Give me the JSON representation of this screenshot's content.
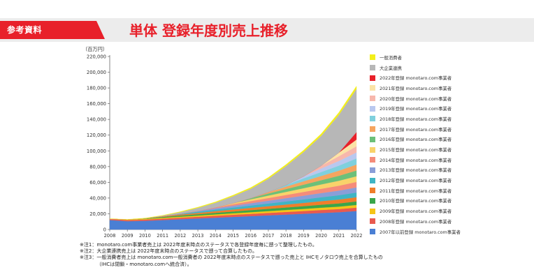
{
  "header": {
    "badge": "参考資料",
    "title": "単体 登録年度別売上推移"
  },
  "chart_data": {
    "type": "area",
    "stacked": true,
    "title": "単体 登録年度別売上推移",
    "ylabel": "（百万円）",
    "xlabel": "",
    "ylim": [
      0,
      220000
    ],
    "yticks": [
      0,
      20000,
      40000,
      60000,
      80000,
      100000,
      120000,
      140000,
      160000,
      180000,
      200000,
      220000
    ],
    "ytick_labels": [
      "0",
      "20,000",
      "40,000",
      "60,000",
      "80,000",
      "100,000",
      "120,000",
      "140,000",
      "160,000",
      "180,000",
      "200,000",
      "220,000"
    ],
    "x": [
      "2008",
      "2009",
      "2010",
      "2011",
      "2012",
      "2013",
      "2014",
      "2015",
      "2016",
      "2017",
      "2018",
      "2019",
      "2020",
      "2021",
      "2022"
    ],
    "series": [
      {
        "name": "2007年以前登録 monotaro.com事業者",
        "color": "#4a7fd4",
        "values": [
          12000,
          10500,
          11000,
          12000,
          13000,
          14000,
          15000,
          16000,
          17000,
          18000,
          19000,
          20000,
          21000,
          22000,
          23500
        ]
      },
      {
        "name": "2008年登録 monotaro.com事業者",
        "color": "#e85a4f",
        "values": [
          1500,
          1500,
          1600,
          1800,
          2000,
          2200,
          2500,
          2700,
          2900,
          3100,
          3300,
          3500,
          3800,
          4000,
          4300
        ]
      },
      {
        "name": "2009年登録 monotaro.com事業者",
        "color": "#f5c518",
        "values": [
          0,
          600,
          900,
          1100,
          1300,
          1500,
          1700,
          1900,
          2100,
          2300,
          2500,
          2700,
          2900,
          3100,
          3400
        ]
      },
      {
        "name": "2010年登録 monotaro.com事業者",
        "color": "#3aa64a",
        "values": [
          0,
          0,
          600,
          1100,
          1400,
          1700,
          2000,
          2300,
          2600,
          2900,
          3200,
          3500,
          3800,
          4100,
          4500
        ]
      },
      {
        "name": "2011年登録 monotaro.com事業者",
        "color": "#f07e2a",
        "values": [
          0,
          0,
          0,
          700,
          1300,
          1700,
          2100,
          2500,
          2900,
          3300,
          3700,
          4100,
          4500,
          4900,
          5300
        ]
      },
      {
        "name": "2012年登録 monotaro.com事業者",
        "color": "#3fb5c4",
        "values": [
          0,
          0,
          0,
          0,
          800,
          1500,
          2000,
          2500,
          3000,
          3500,
          4000,
          4500,
          5000,
          5500,
          6000
        ]
      },
      {
        "name": "2013年登録 monotaro.com事業者",
        "color": "#8a9ed8",
        "values": [
          0,
          0,
          0,
          0,
          0,
          900,
          1700,
          2300,
          2900,
          3500,
          4100,
          4700,
          5300,
          5900,
          6500
        ]
      },
      {
        "name": "2014年登録 monotaro.com事業者",
        "color": "#f58c7a",
        "values": [
          0,
          0,
          0,
          0,
          0,
          0,
          1000,
          2000,
          2700,
          3400,
          4100,
          4800,
          5500,
          6200,
          7000
        ]
      },
      {
        "name": "2015年登録 monotaro.com事業者",
        "color": "#f9d36a",
        "values": [
          0,
          0,
          0,
          0,
          0,
          0,
          0,
          1200,
          2300,
          3100,
          3900,
          4700,
          5500,
          6300,
          7200
        ]
      },
      {
        "name": "2016年登録 monotaro.com事業者",
        "color": "#6cc079",
        "values": [
          0,
          0,
          0,
          0,
          0,
          0,
          0,
          0,
          1400,
          2700,
          3600,
          4500,
          5400,
          6300,
          7300
        ]
      },
      {
        "name": "2017年登録 monotaro.com事業者",
        "color": "#f6a55f",
        "values": [
          0,
          0,
          0,
          0,
          0,
          0,
          0,
          0,
          0,
          1700,
          3200,
          4300,
          5400,
          6500,
          7600
        ]
      },
      {
        "name": "2018年登録 monotaro.com事業者",
        "color": "#7fd0dd",
        "values": [
          0,
          0,
          0,
          0,
          0,
          0,
          0,
          0,
          0,
          0,
          2000,
          3800,
          5000,
          6400,
          7800
        ]
      },
      {
        "name": "2019年登録 monotaro.com事業者",
        "color": "#b9c8ef",
        "values": [
          0,
          0,
          0,
          0,
          0,
          0,
          0,
          0,
          0,
          0,
          0,
          2400,
          4500,
          6000,
          7600
        ]
      },
      {
        "name": "2020年登録 monotaro.com事業者",
        "color": "#f7b7ac",
        "values": [
          0,
          0,
          0,
          0,
          0,
          0,
          0,
          0,
          0,
          0,
          0,
          0,
          3500,
          6000,
          7800
        ]
      },
      {
        "name": "2021年登録 monotaro.com事業者",
        "color": "#fbe3a6",
        "values": [
          0,
          0,
          0,
          0,
          0,
          0,
          0,
          0,
          0,
          0,
          0,
          0,
          0,
          4500,
          8500
        ]
      },
      {
        "name": "2022年登録 monotaro.com事業者",
        "color": "#e8202a",
        "values": [
          0,
          0,
          0,
          0,
          0,
          0,
          0,
          0,
          0,
          0,
          0,
          0,
          0,
          0,
          9500
        ]
      },
      {
        "name": "大企業連携",
        "color": "#b7b7b7",
        "values": [
          0,
          0,
          0,
          800,
          2200,
          4000,
          6000,
          9000,
          12000,
          17000,
          24000,
          31000,
          38000,
          48000,
          55000
        ]
      },
      {
        "name": "一般消費者",
        "color": "#f3ef1b",
        "values": [
          300,
          300,
          400,
          500,
          700,
          900,
          1100,
          1300,
          1500,
          1700,
          2000,
          2300,
          2700,
          3100,
          3500
        ]
      }
    ],
    "legend_order_top_to_bottom": [
      17,
      16,
      15,
      14,
      13,
      12,
      11,
      10,
      9,
      8,
      7,
      6,
      5,
      4,
      3,
      2,
      1,
      0
    ],
    "legend": "right"
  },
  "notes": [
    "※注1：monotaro.com事業者売上は 2022年度末時点のステータスで各登録年度毎に遡って整理したもの。",
    "※注2：大企業連携売上は 2022年度末時点のステータスで遡って合算したもの。",
    "※注3：一般消費者売上は monotaro.com一般消費者の 2022年度末時点のステータスで遡った売上と IHCモノタロウ売上を合算したもの",
    "（IHCは閉鎖・monotaro.comへ統合済）。"
  ]
}
